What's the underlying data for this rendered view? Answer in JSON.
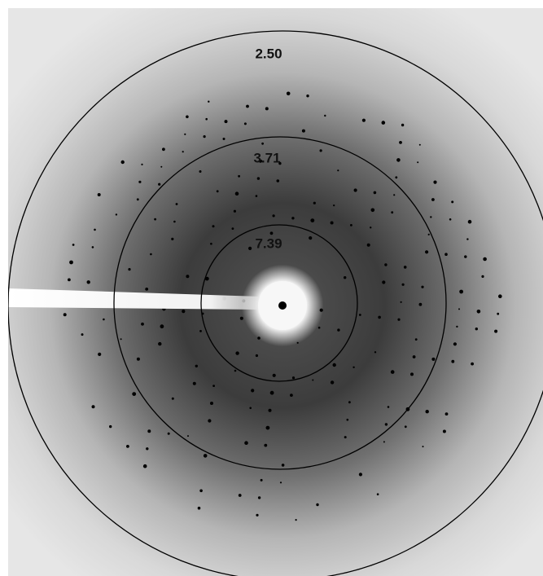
{
  "rings": [
    {
      "label": "2.50"
    },
    {
      "label": "3.71"
    },
    {
      "label": "7.39"
    }
  ]
}
